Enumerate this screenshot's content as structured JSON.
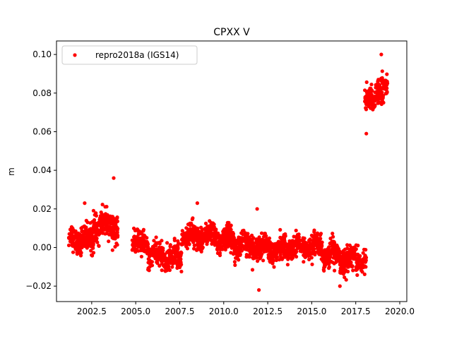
{
  "chart_data": {
    "type": "scatter",
    "title": "CPXX V",
    "xlabel": "",
    "ylabel": "m",
    "xlim": [
      2000.5,
      2020.4
    ],
    "ylim": [
      -0.028,
      0.107
    ],
    "xticks": [
      2002.5,
      2005.0,
      2007.5,
      2010.0,
      2012.5,
      2015.0,
      2017.5,
      2020.0
    ],
    "xtick_labels": [
      "2002.5",
      "2005.0",
      "2007.5",
      "2010.0",
      "2012.5",
      "2015.0",
      "2017.5",
      "2020.0"
    ],
    "yticks": [
      -0.02,
      0.0,
      0.02,
      0.04,
      0.06,
      0.08,
      0.1
    ],
    "ytick_labels": [
      "−0.02",
      "0.00",
      "0.02",
      "0.04",
      "0.06",
      "0.08",
      "0.10"
    ],
    "grid": false,
    "legend_position": "top-left",
    "series": [
      {
        "name": "repro2018a (IGS14)",
        "color": "#ff0000",
        "segments": [
          {
            "x_start": 2001.2,
            "x_end": 2001.9,
            "mean": 0.004,
            "spread": 0.006
          },
          {
            "x_start": 2001.9,
            "x_end": 2002.6,
            "mean": 0.004,
            "spread": 0.007
          },
          {
            "x_start": 2002.6,
            "x_end": 2003.2,
            "mean": 0.011,
            "spread": 0.007
          },
          {
            "x_start": 2003.2,
            "x_end": 2004.0,
            "mean": 0.011,
            "spread": 0.007
          },
          {
            "x_start": 2004.8,
            "x_end": 2005.7,
            "mean": 0.002,
            "spread": 0.006
          },
          {
            "x_start": 2005.7,
            "x_end": 2006.6,
            "mean": -0.004,
            "spread": 0.006
          },
          {
            "x_start": 2006.6,
            "x_end": 2007.6,
            "mean": -0.005,
            "spread": 0.006
          },
          {
            "x_start": 2007.6,
            "x_end": 2008.6,
            "mean": 0.006,
            "spread": 0.006
          },
          {
            "x_start": 2008.6,
            "x_end": 2009.6,
            "mean": 0.006,
            "spread": 0.006
          },
          {
            "x_start": 2009.6,
            "x_end": 2010.6,
            "mean": 0.004,
            "spread": 0.006
          },
          {
            "x_start": 2010.6,
            "x_end": 2011.6,
            "mean": 0.001,
            "spread": 0.006
          },
          {
            "x_start": 2011.6,
            "x_end": 2012.6,
            "mean": 0.0,
            "spread": 0.006
          },
          {
            "x_start": 2012.6,
            "x_end": 2013.6,
            "mean": -0.001,
            "spread": 0.006
          },
          {
            "x_start": 2013.6,
            "x_end": 2014.6,
            "mean": 0.0,
            "spread": 0.006
          },
          {
            "x_start": 2014.6,
            "x_end": 2015.6,
            "mean": 0.0,
            "spread": 0.006
          },
          {
            "x_start": 2015.6,
            "x_end": 2016.6,
            "mean": -0.004,
            "spread": 0.006
          },
          {
            "x_start": 2016.6,
            "x_end": 2018.1,
            "mean": -0.006,
            "spread": 0.006
          },
          {
            "x_start": 2018.0,
            "x_end": 2018.6,
            "mean": 0.076,
            "spread": 0.006
          },
          {
            "x_start": 2018.6,
            "x_end": 2019.3,
            "mean": 0.082,
            "spread": 0.007
          }
        ],
        "outliers": [
          {
            "x": 2003.75,
            "y": 0.036
          },
          {
            "x": 2012.0,
            "y": -0.022
          },
          {
            "x": 2018.1,
            "y": 0.059
          },
          {
            "x": 2018.95,
            "y": 0.1
          },
          {
            "x": 2002.1,
            "y": 0.023
          },
          {
            "x": 2008.5,
            "y": 0.023
          },
          {
            "x": 2011.9,
            "y": 0.02
          },
          {
            "x": 2016.6,
            "y": -0.02
          }
        ]
      }
    ]
  }
}
